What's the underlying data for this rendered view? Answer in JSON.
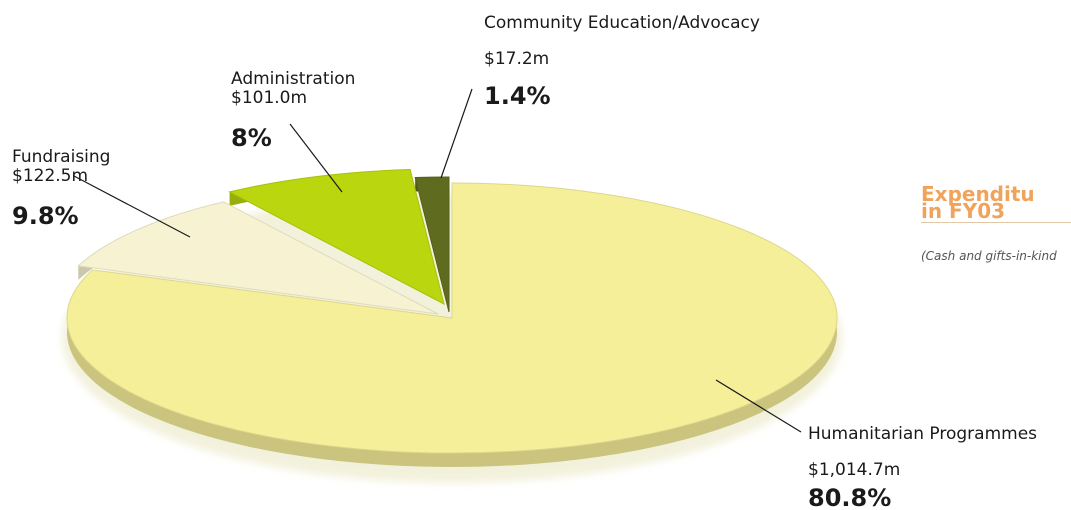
{
  "title": {
    "line1": "Expenditu",
    "line2": "in FY03"
  },
  "subtitle": "(Cash and gifts-in-kind",
  "chart_data": {
    "type": "pie",
    "title": "Expenditu in FY03",
    "subtitle": "(Cash and gifts-in-kind",
    "slices": [
      {
        "name": "Humanitarian Programmes",
        "amount": "$1,014.7m",
        "percent_label": "80.8%",
        "value": 80.8,
        "color": "#f6ef9a"
      },
      {
        "name": "Fundraising",
        "amount": "$122.5m",
        "percent_label": "9.8%",
        "value": 9.8,
        "color": "#f7f3d2"
      },
      {
        "name": "Administration",
        "amount": "$101.0m",
        "percent_label": "8%",
        "value": 8.0,
        "color": "#b9d60e"
      },
      {
        "name": "Community Education/Advocacy",
        "amount": "$17.2m",
        "percent_label": "1.4%",
        "value": 1.4,
        "color": "#5f6b1f"
      }
    ]
  }
}
